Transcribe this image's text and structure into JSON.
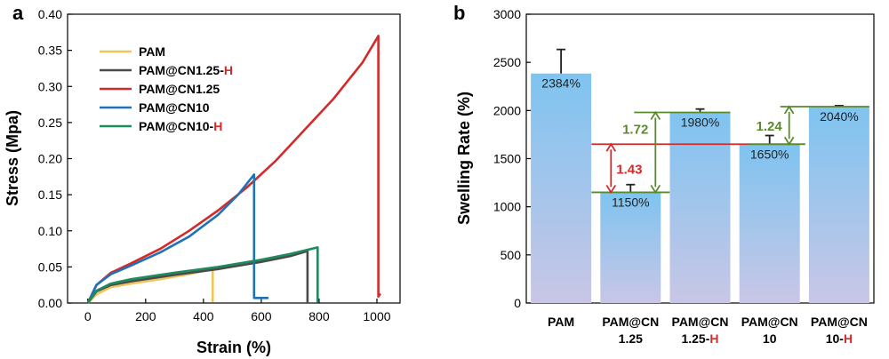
{
  "colors": {
    "red": "#d42a2a",
    "green": "#5a8a2e",
    "bar_top": "#7ec4f0",
    "bar_bottom": "#c9c6e6"
  },
  "chart_data": [
    {
      "panel": "a",
      "type": "line",
      "xlabel": "Strain (%)",
      "ylabel": "Stress (Mpa)",
      "xlim": [
        -70,
        1080
      ],
      "ylim": [
        0,
        0.4
      ],
      "xticks": [
        0,
        200,
        400,
        600,
        800,
        1000
      ],
      "yticks": [
        0.0,
        0.05,
        0.1,
        0.15,
        0.2,
        0.25,
        0.3,
        0.35,
        0.4
      ],
      "grid": false,
      "legend_position": "top-left",
      "series": [
        {
          "name": "PAM",
          "name_suffix": "",
          "color": "#f2c55a",
          "points": [
            [
              0,
              0
            ],
            [
              30,
              0.012
            ],
            [
              80,
              0.022
            ],
            [
              150,
              0.027
            ],
            [
              250,
              0.033
            ],
            [
              350,
              0.04
            ],
            [
              410,
              0.045
            ],
            [
              432,
              0.047
            ],
            [
              432,
              0.001
            ]
          ]
        },
        {
          "name": "PAM@CN1.25-",
          "name_suffix": "H",
          "color": "#4a4a4a",
          "points": [
            [
              0,
              0
            ],
            [
              30,
              0.016
            ],
            [
              80,
              0.025
            ],
            [
              150,
              0.03
            ],
            [
              300,
              0.039
            ],
            [
              450,
              0.047
            ],
            [
              600,
              0.057
            ],
            [
              700,
              0.065
            ],
            [
              760,
              0.072
            ],
            [
              760,
              0.001
            ]
          ]
        },
        {
          "name": "PAM@CN1.25",
          "name_suffix": "",
          "color": "#d42a2a",
          "points": [
            [
              0,
              0
            ],
            [
              30,
              0.025
            ],
            [
              80,
              0.042
            ],
            [
              150,
              0.055
            ],
            [
              250,
              0.075
            ],
            [
              350,
              0.1
            ],
            [
              450,
              0.128
            ],
            [
              550,
              0.16
            ],
            [
              650,
              0.197
            ],
            [
              750,
              0.24
            ],
            [
              850,
              0.283
            ],
            [
              950,
              0.333
            ],
            [
              1005,
              0.37
            ],
            [
              1005,
              0.009
            ],
            [
              1012,
              0.013
            ]
          ]
        },
        {
          "name": "PAM@CN10",
          "name_suffix": "",
          "color": "#1e72b8",
          "points": [
            [
              0,
              0
            ],
            [
              30,
              0.025
            ],
            [
              80,
              0.04
            ],
            [
              150,
              0.052
            ],
            [
              250,
              0.07
            ],
            [
              350,
              0.092
            ],
            [
              450,
              0.122
            ],
            [
              520,
              0.15
            ],
            [
              575,
              0.178
            ],
            [
              575,
              0.007
            ],
            [
              625,
              0.007
            ]
          ]
        },
        {
          "name": "PAM@CN10-",
          "name_suffix": "H",
          "color": "#1f8a5e",
          "points": [
            [
              0,
              0
            ],
            [
              30,
              0.017
            ],
            [
              80,
              0.027
            ],
            [
              150,
              0.033
            ],
            [
              300,
              0.042
            ],
            [
              450,
              0.05
            ],
            [
              600,
              0.06
            ],
            [
              700,
              0.068
            ],
            [
              795,
              0.077
            ],
            [
              795,
              0.001
            ]
          ]
        }
      ]
    },
    {
      "panel": "b",
      "type": "bar",
      "ylabel": "Swelling Rate (%)",
      "ylim": [
        0,
        3000
      ],
      "yticks": [
        0,
        500,
        1000,
        1500,
        2000,
        2500,
        3000
      ],
      "categories": [
        {
          "line1": "PAM",
          "line2": "",
          "line2_suffix": ""
        },
        {
          "line1": "PAM@CN",
          "line2": "1.25",
          "line2_suffix": ""
        },
        {
          "line1": "PAM@CN",
          "line2": "1.25-",
          "line2_suffix": "H"
        },
        {
          "line1": "PAM@CN",
          "line2": "10",
          "line2_suffix": ""
        },
        {
          "line1": "PAM@CN",
          "line2": "10-",
          "line2_suffix": "H"
        }
      ],
      "values": [
        2384,
        1150,
        1980,
        1650,
        2040
      ],
      "errors": [
        250,
        80,
        35,
        90,
        10
      ],
      "data_labels": [
        "2384%",
        "1150%",
        "1980%",
        "1650%",
        "2040%"
      ],
      "annotations": [
        {
          "label": "1.43",
          "color": "red",
          "from": 1150,
          "to": 1650
        },
        {
          "label": "1.72",
          "color": "green",
          "from": 1150,
          "to": 1980
        },
        {
          "label": "1.24",
          "color": "green",
          "from": 1650,
          "to": 2040
        }
      ]
    }
  ]
}
